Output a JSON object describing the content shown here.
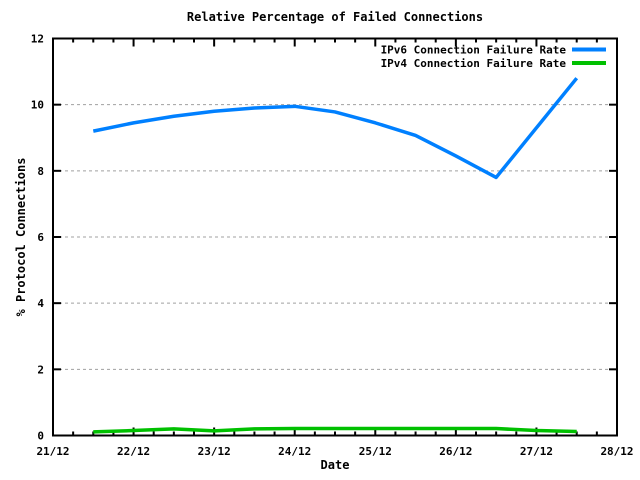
{
  "figure": {
    "title": "Relative Percentage of Failed Connections"
  },
  "chart_data": {
    "type": "line",
    "title": "Relative Percentage of Failed Connections",
    "xlabel": "Date",
    "ylabel": "% Protocol Connections",
    "x_tick_labels": [
      "21/12",
      "22/12",
      "23/12",
      "24/12",
      "25/12",
      "26/12",
      "27/12",
      "28/12"
    ],
    "x_range_days": [
      0,
      7
    ],
    "x_minor_ticks_per_day": 4,
    "ylim": [
      0,
      12
    ],
    "y_tick_step": 2,
    "grid": {
      "horizontal": true,
      "vertical": false,
      "style": "dashed",
      "color": "#a0a0a0",
      "at": [
        2,
        4,
        6,
        8,
        10
      ]
    },
    "legend": {
      "position": "top-right-inside"
    },
    "series": [
      {
        "name": "IPv6 Connection Failure Rate",
        "color": "#0080ff",
        "x_days_after_21_12": [
          0.5,
          1,
          1.5,
          2,
          2.5,
          3,
          3.5,
          4,
          4.5,
          5,
          5.5,
          6,
          6.5
        ],
        "values": [
          9.2,
          9.45,
          9.65,
          9.8,
          9.9,
          9.95,
          9.78,
          9.45,
          9.07,
          8.45,
          7.8,
          9.3,
          10.8
        ]
      },
      {
        "name": "IPv4 Connection Failure Rate",
        "color": "#00c000",
        "x_days_after_21_12": [
          0.5,
          1,
          1.5,
          2,
          2.5,
          3,
          3.5,
          4,
          4.5,
          5,
          5.5,
          6,
          6.5
        ],
        "values": [
          0.11,
          0.15,
          0.2,
          0.14,
          0.2,
          0.21,
          0.21,
          0.21,
          0.21,
          0.21,
          0.21,
          0.15,
          0.12
        ]
      }
    ]
  }
}
